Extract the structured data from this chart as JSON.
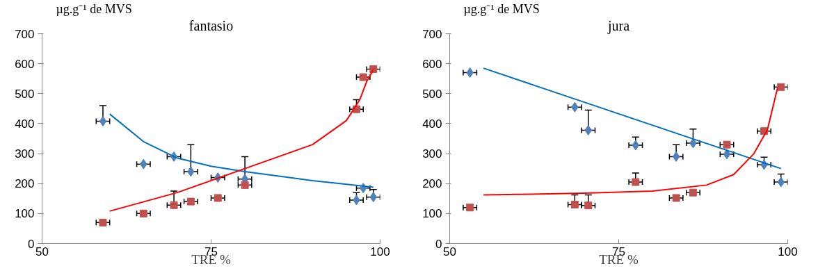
{
  "chart_data": [
    {
      "type": "scatter",
      "title": "fantasio",
      "xlabel": "TRE %",
      "ylabel": "µg.g⁻¹ de MVS",
      "xlim": [
        50,
        100
      ],
      "xticks": [
        50,
        75,
        100
      ],
      "ylim": [
        0,
        700
      ],
      "yticks": [
        0,
        100,
        200,
        300,
        400,
        500,
        600,
        700
      ],
      "grid": false,
      "series": [
        {
          "type": "scatter",
          "marker": "diamond",
          "color": "#4f81bd",
          "x": [
            59,
            65,
            69.5,
            72,
            76,
            80,
            96.5,
            97.5,
            99
          ],
          "values": [
            408,
            265,
            290,
            240,
            220,
            215,
            145,
            185,
            155
          ],
          "errors": [
            [
              408,
              460
            ],
            null,
            null,
            [
              240,
              330
            ],
            null,
            [
              215,
              290
            ],
            [
              145,
              170
            ],
            null,
            [
              155,
              180
            ]
          ],
          "xerrors": [
            1,
            1,
            1,
            1,
            1,
            1,
            1,
            1,
            1
          ]
        },
        {
          "type": "scatter",
          "marker": "square",
          "color": "#c0504d",
          "x": [
            59,
            65,
            69.5,
            72,
            76,
            80,
            96.5,
            97.5,
            99
          ],
          "values": [
            70,
            100,
            128,
            140,
            152,
            195,
            448,
            555,
            582
          ],
          "errors": [
            null,
            null,
            [
              128,
              175
            ],
            null,
            null,
            null,
            [
              448,
              480
            ],
            null,
            null
          ],
          "xerrors": [
            1,
            1,
            1,
            1,
            1,
            1,
            1,
            1,
            1
          ]
        },
        {
          "type": "line",
          "marker": "none",
          "color": "#0070c0",
          "x": [
            60,
            65,
            70,
            75,
            80,
            90,
            99
          ],
          "values": [
            432,
            340,
            285,
            258,
            240,
            210,
            188
          ]
        },
        {
          "type": "line",
          "marker": "none",
          "color": "#ff0000",
          "x": [
            60,
            70,
            80,
            90,
            95,
            97,
            98,
            99
          ],
          "values": [
            108,
            170,
            250,
            330,
            410,
            480,
            540,
            580
          ]
        }
      ]
    },
    {
      "type": "scatter",
      "title": "jura",
      "xlabel": "TRE %",
      "ylabel": "µg.g⁻¹ de MVS",
      "xlim": [
        50,
        100
      ],
      "xticks": [
        50,
        75,
        100
      ],
      "ylim": [
        0,
        700
      ],
      "yticks": [
        0,
        100,
        200,
        300,
        400,
        500,
        600,
        700
      ],
      "grid": false,
      "series": [
        {
          "type": "scatter",
          "marker": "diamond",
          "color": "#4f81bd",
          "x": [
            53,
            68.5,
            70.5,
            77.5,
            83.5,
            86,
            91,
            96.5,
            99
          ],
          "values": [
            570,
            455,
            378,
            328,
            290,
            335,
            298,
            263,
            205
          ],
          "errors": [
            null,
            null,
            [
              378,
              445
            ],
            [
              328,
              355
            ],
            [
              290,
              330
            ],
            [
              335,
              382
            ],
            null,
            [
              263,
              288
            ],
            [
              205,
              232
            ]
          ],
          "xerrors": [
            1,
            1,
            1,
            1,
            1,
            1,
            1,
            1,
            1
          ]
        },
        {
          "type": "scatter",
          "marker": "square",
          "color": "#c0504d",
          "x": [
            53,
            68.5,
            70.5,
            77.5,
            83.5,
            86,
            91,
            96.5,
            99
          ],
          "values": [
            120,
            130,
            127,
            205,
            152,
            170,
            330,
            375,
            522
          ],
          "errors": [
            null,
            [
              130,
              162
            ],
            [
              127,
              162
            ],
            [
              205,
              235
            ],
            null,
            null,
            null,
            null,
            null
          ],
          "xerrors": [
            1,
            1,
            1,
            1,
            1,
            1,
            1,
            1,
            1
          ]
        },
        {
          "type": "line",
          "marker": "none",
          "color": "#0070c0",
          "x": [
            55,
            99
          ],
          "values": [
            585,
            250
          ]
        },
        {
          "type": "line",
          "marker": "none",
          "color": "#ff0000",
          "x": [
            55,
            70,
            80,
            88,
            92,
            95,
            97,
            98.5
          ],
          "values": [
            162,
            168,
            175,
            195,
            230,
            300,
            380,
            520
          ]
        }
      ]
    }
  ]
}
